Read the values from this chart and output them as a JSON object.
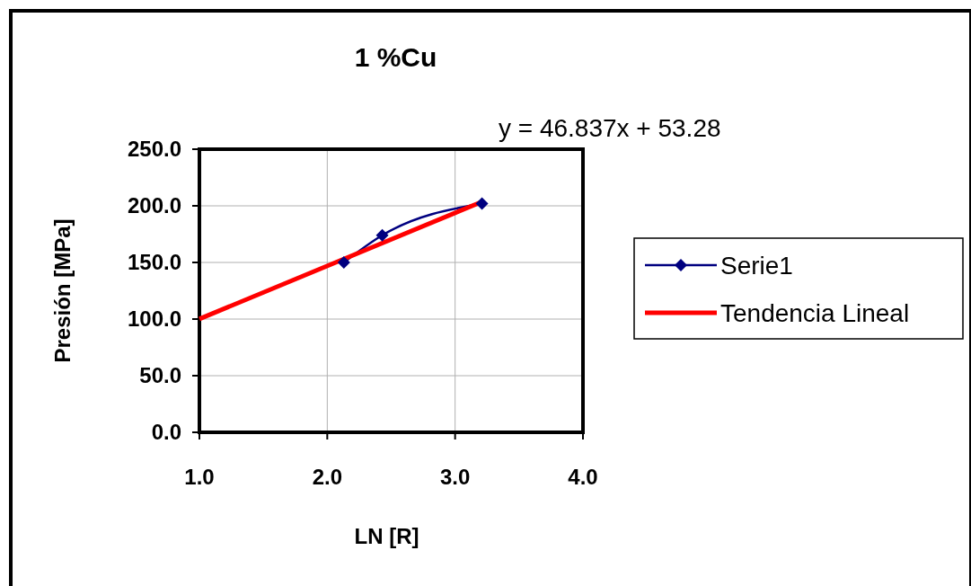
{
  "chart_data": {
    "type": "line",
    "title": "1 %Cu",
    "xlabel": "LN [R]",
    "ylabel": "Presión [MPa]",
    "annotations": [
      "y = 46.837x + 53.28"
    ],
    "xlim": [
      1,
      4
    ],
    "xticks": [
      {
        "value": 1,
        "label": "1.0"
      },
      {
        "value": 2,
        "label": "2.0"
      },
      {
        "value": 3,
        "label": "3.0"
      },
      {
        "value": 4,
        "label": "4.0"
      }
    ],
    "ylim": [
      0,
      250
    ],
    "yticks": [
      {
        "value": 0,
        "label": "0.0"
      },
      {
        "value": 50,
        "label": "50.0"
      },
      {
        "value": 100,
        "label": "100.0"
      },
      {
        "value": 150,
        "label": "150.0"
      },
      {
        "value": 200,
        "label": "200.0"
      },
      {
        "value": 250,
        "label": "250.0"
      }
    ],
    "grid": true,
    "legend": "right",
    "series": [
      {
        "name": "Serie1",
        "color": "#000080",
        "x": [
          2.13,
          2.43,
          3.21
        ],
        "values": [
          150,
          174,
          202
        ],
        "marker": "diamond"
      },
      {
        "name": "Tendencia Lineal",
        "color": "#ff0000",
        "x": [
          1,
          3.21
        ],
        "values": [
          100.1,
          203.6
        ],
        "marker": "none"
      }
    ]
  }
}
